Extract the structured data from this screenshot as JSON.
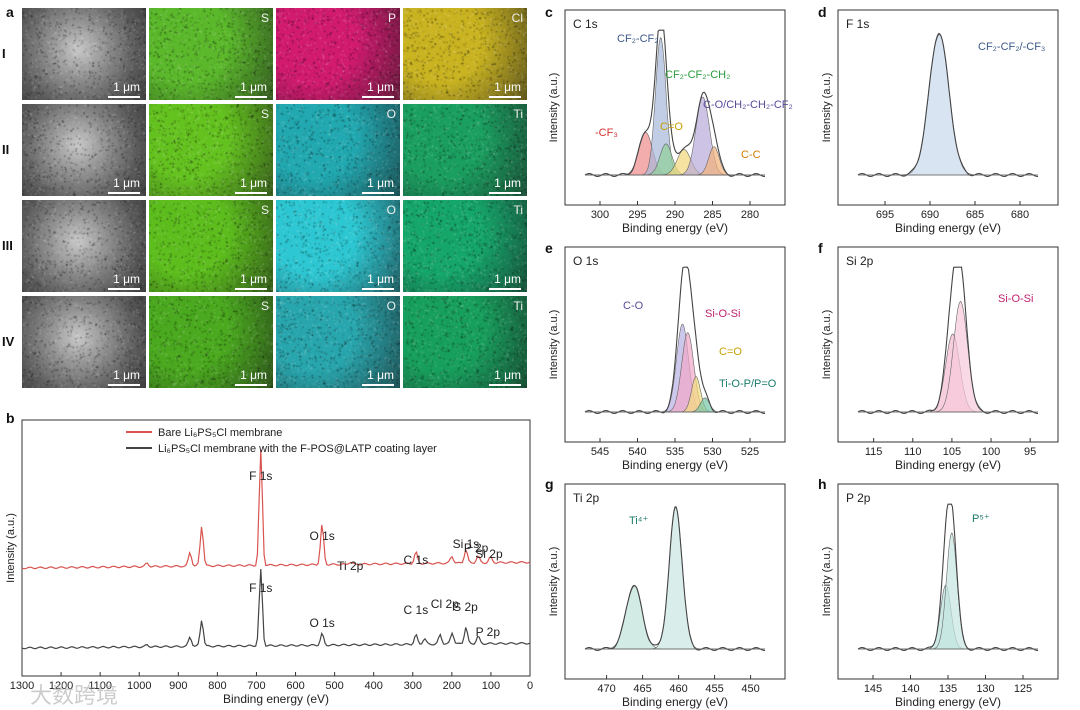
{
  "figure": {
    "panel_labels": [
      "a",
      "b",
      "c",
      "d",
      "e",
      "f",
      "g",
      "h"
    ],
    "panel_a": {
      "rows": [
        {
          "label": "I",
          "elements": [
            "",
            "S",
            "P",
            "Cl"
          ],
          "tint": [
            "#9a9a9a",
            "#5ab82a",
            "#d21a6f",
            "#c9b320"
          ]
        },
        {
          "label": "II",
          "elements": [
            "",
            "S",
            "O",
            "Ti"
          ],
          "tint": [
            "#9a9a9a",
            "#64c21f",
            "#21a8b0",
            "#1a9f60"
          ]
        },
        {
          "label": "III",
          "elements": [
            "",
            "S",
            "O",
            "Ti"
          ],
          "tint": [
            "#9a9a9a",
            "#5cbd1c",
            "#2cc7d2",
            "#15a66a"
          ]
        },
        {
          "label": "IV",
          "elements": [
            "",
            "S",
            "O",
            "Ti"
          ],
          "tint": [
            "#8d8d8d",
            "#4aa91e",
            "#28a6ad",
            "#179f5d"
          ]
        }
      ],
      "scale_bar": "1 μm"
    },
    "watermark": "大数跨境"
  },
  "chart_data": [
    {
      "panel": "b",
      "type": "line",
      "xlabel": "Binding energy (eV)",
      "ylabel": "Intensity (a.u.)",
      "xlim": [
        1300,
        0
      ],
      "xticks": [
        1300,
        1200,
        1100,
        1000,
        900,
        800,
        700,
        600,
        500,
        400,
        300,
        200,
        100,
        0
      ],
      "legend": {
        "placement": "top-right",
        "entries": [
          "Bare Li₆PS₅Cl membrane",
          "Li₆PS₅Cl membrane with the F-POS@LATP coating layer"
        ]
      },
      "series": [
        {
          "name": "Bare Li₆PS₅Cl membrane",
          "color": "#d9534f",
          "peaks": [
            [
              980,
              0.03
            ],
            [
              870,
              0.12
            ],
            [
              840,
              0.35
            ],
            [
              689,
              1.0
            ],
            [
              532,
              0.35
            ],
            [
              460,
              0.02
            ],
            [
              292,
              0.1
            ],
            [
              200,
              0.06
            ],
            [
              164,
              0.12
            ],
            [
              133,
              0.06
            ],
            [
              101,
              0.05
            ]
          ]
        },
        {
          "name": "Li₆PS₅Cl membrane with the F-POS@LATP coating layer",
          "color": "#444444",
          "peaks": [
            [
              980,
              0.02
            ],
            [
              870,
              0.1
            ],
            [
              840,
              0.28
            ],
            [
              689,
              0.8
            ],
            [
              532,
              0.12
            ],
            [
              292,
              0.1
            ],
            [
              270,
              0.06
            ],
            [
              230,
              0.1
            ],
            [
              199,
              0.12
            ],
            [
              164,
              0.18
            ],
            [
              133,
              0.08
            ]
          ]
        }
      ],
      "annotations": [
        "F 1s",
        "O 1s",
        "Ti 2p",
        "C 1s",
        "Si 1s",
        "P 2p",
        "Si 2p",
        "F 1s",
        "O 1s",
        "C 1s",
        "Cl 2p",
        "S 2p",
        "P 2p"
      ]
    },
    {
      "panel": "c",
      "type": "line",
      "title": "C 1s",
      "xlabel": "Binding energy (eV)",
      "ylabel": "Intensity (a.u.)",
      "xlim": [
        302,
        278
      ],
      "xticks": [
        300,
        295,
        290,
        285,
        280
      ],
      "components": [
        {
          "name": "-CF3",
          "center": 293.9,
          "height": 0.3,
          "width": 0.9,
          "color": "#f08a8a"
        },
        {
          "name": "CF2-CF2",
          "center": 291.9,
          "height": 0.97,
          "width": 0.7,
          "color": "#a7b8d8"
        },
        {
          "name": "CF2-CF2-CH2",
          "center": 291.2,
          "height": 0.22,
          "width": 0.8,
          "color": "#8fd19a"
        },
        {
          "name": "C=O",
          "center": 288.8,
          "height": 0.18,
          "width": 0.9,
          "color": "#f2d77a"
        },
        {
          "name": "C-O/CH2-CH2-CF2",
          "center": 286.3,
          "height": 0.55,
          "width": 0.9,
          "color": "#b8a9d9"
        },
        {
          "name": "C-C",
          "center": 284.8,
          "height": 0.2,
          "width": 0.7,
          "color": "#f3b27a"
        }
      ],
      "labels": [
        "CF₂-CF₂",
        "CF₂-CF₂-CH₂",
        "C-O/CH₂-CH₂-CF₂",
        "-CF₃",
        "C=O",
        "C-C"
      ]
    },
    {
      "panel": "d",
      "type": "line",
      "title": "F 1s",
      "xlabel": "Binding energy (eV)",
      "ylabel": "Intensity (a.u.)",
      "xlim": [
        698,
        678
      ],
      "xticks": [
        695,
        690,
        685,
        680
      ],
      "components": [
        {
          "name": "CF2-CF2/-CF3",
          "center": 689.0,
          "height": 1.0,
          "width": 1.1,
          "color": "#c9d8ec"
        }
      ],
      "labels": [
        "CF₂-CF₂/-CF₃"
      ]
    },
    {
      "panel": "e",
      "type": "line",
      "title": "O 1s",
      "xlabel": "Binding energy (eV)",
      "ylabel": "Intensity (a.u.)",
      "xlim": [
        547,
        523
      ],
      "xticks": [
        545,
        540,
        535,
        530,
        525
      ],
      "components": [
        {
          "name": "C-O",
          "center": 534.0,
          "height": 0.62,
          "width": 0.8,
          "color": "#b7b1e3"
        },
        {
          "name": "Si-O-Si",
          "center": 533.3,
          "height": 0.56,
          "width": 0.8,
          "color": "#f1a6c8"
        },
        {
          "name": "C=O",
          "center": 532.2,
          "height": 0.25,
          "width": 0.6,
          "color": "#f4dd7d"
        },
        {
          "name": "Ti-O-P/P=O",
          "center": 531.0,
          "height": 0.1,
          "width": 0.6,
          "color": "#75c6a6"
        }
      ],
      "labels": [
        "C-O",
        "Si-O-Si",
        "C=O",
        "Ti-O-P/P=O"
      ]
    },
    {
      "panel": "f",
      "type": "line",
      "title": "Si 2p",
      "xlabel": "Binding energy (eV)",
      "ylabel": "Intensity (a.u.)",
      "xlim": [
        117,
        94
      ],
      "xticks": [
        115,
        110,
        105,
        100,
        95
      ],
      "components": [
        {
          "name": "Si-O-Si (a)",
          "center": 104.9,
          "height": 0.55,
          "width": 0.9,
          "color": "#f4b9cf"
        },
        {
          "name": "Si-O-Si (b)",
          "center": 103.9,
          "height": 0.78,
          "width": 0.9,
          "color": "#f7c9da"
        }
      ],
      "labels": [
        "Si-O-Si"
      ]
    },
    {
      "panel": "g",
      "type": "line",
      "title": "Ti 2p",
      "xlabel": "Binding energy (eV)",
      "ylabel": "Intensity (a.u.)",
      "xlim": [
        473,
        448
      ],
      "xticks": [
        470,
        465,
        460,
        455,
        450
      ],
      "components": [
        {
          "name": "Ti4+ 2p1/2",
          "center": 466.2,
          "height": 0.45,
          "width": 1.1,
          "color": "#bfe2da"
        },
        {
          "name": "Ti4+ 2p3/2",
          "center": 460.4,
          "height": 1.0,
          "width": 0.9,
          "color": "#c9e7e3"
        }
      ],
      "labels": [
        "Ti⁴⁺"
      ]
    },
    {
      "panel": "h",
      "type": "line",
      "title": "P 2p",
      "xlabel": "Binding energy (eV)",
      "ylabel": "Intensity (a.u.)",
      "xlim": [
        147,
        123
      ],
      "xticks": [
        145,
        140,
        135,
        130,
        125
      ],
      "components": [
        {
          "name": "P5+ 2p1/2",
          "center": 135.3,
          "height": 0.45,
          "width": 0.7,
          "color": "#b7e0dc"
        },
        {
          "name": "P5+ 2p3/2",
          "center": 134.5,
          "height": 0.82,
          "width": 0.7,
          "color": "#c4e6e0"
        }
      ],
      "labels": [
        "P⁵⁺"
      ]
    }
  ]
}
